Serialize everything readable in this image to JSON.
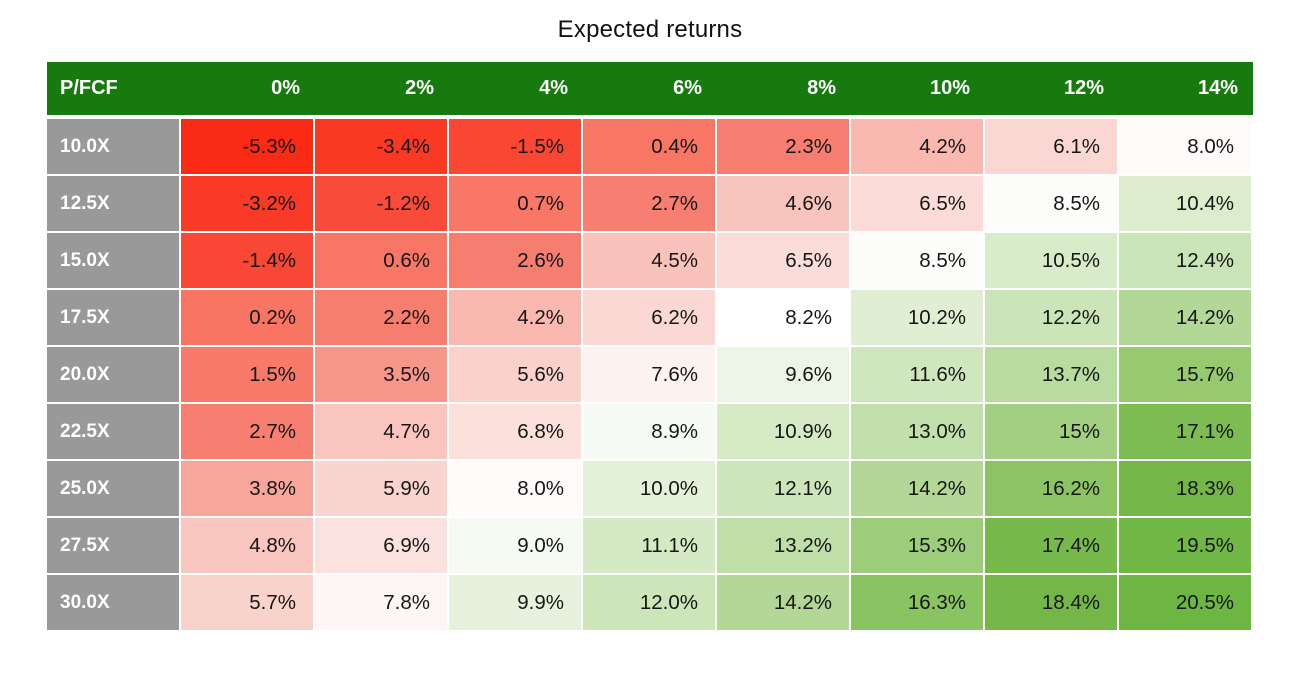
{
  "title": "Expected returns",
  "chart_data": {
    "type": "heatmap",
    "title": "Expected returns",
    "row_header_label": "P/FCF",
    "columns": [
      "0%",
      "2%",
      "4%",
      "6%",
      "8%",
      "10%",
      "12%",
      "14%"
    ],
    "rows": [
      "10.0X",
      "12.5X",
      "15.0X",
      "17.5X",
      "20.0X",
      "22.5X",
      "25.0X",
      "27.5X",
      "30.0X"
    ],
    "values": [
      [
        -5.3,
        -3.4,
        -1.5,
        0.4,
        2.3,
        4.2,
        6.1,
        8.0
      ],
      [
        -3.2,
        -1.2,
        0.7,
        2.7,
        4.6,
        6.5,
        8.5,
        10.4
      ],
      [
        -1.4,
        0.6,
        2.6,
        4.5,
        6.5,
        8.5,
        10.5,
        12.4
      ],
      [
        0.2,
        2.2,
        4.2,
        6.2,
        8.2,
        10.2,
        12.2,
        14.2
      ],
      [
        1.5,
        3.5,
        5.6,
        7.6,
        9.6,
        11.6,
        13.7,
        15.7
      ],
      [
        2.7,
        4.7,
        6.8,
        8.9,
        10.9,
        13.0,
        15.0,
        17.1
      ],
      [
        3.8,
        5.9,
        8.0,
        10.0,
        12.1,
        14.2,
        16.2,
        18.3
      ],
      [
        4.8,
        6.9,
        9.0,
        11.1,
        13.2,
        15.3,
        17.4,
        19.5
      ],
      [
        5.7,
        7.8,
        9.9,
        12.0,
        14.2,
        16.3,
        18.4,
        20.5
      ]
    ],
    "cell_labels": [
      [
        "-5.3%",
        "-3.4%",
        "-1.5%",
        "0.4%",
        "2.3%",
        "4.2%",
        "6.1%",
        "8.0%"
      ],
      [
        "-3.2%",
        "-1.2%",
        "0.7%",
        "2.7%",
        "4.6%",
        "6.5%",
        "8.5%",
        "10.4%"
      ],
      [
        "-1.4%",
        "0.6%",
        "2.6%",
        "4.5%",
        "6.5%",
        "8.5%",
        "10.5%",
        "12.4%"
      ],
      [
        "0.2%",
        "2.2%",
        "4.2%",
        "6.2%",
        "8.2%",
        "10.2%",
        "12.2%",
        "14.2%"
      ],
      [
        "1.5%",
        "3.5%",
        "5.6%",
        "7.6%",
        "9.6%",
        "11.6%",
        "13.7%",
        "15.7%"
      ],
      [
        "2.7%",
        "4.7%",
        "6.8%",
        "8.9%",
        "10.9%",
        "13.0%",
        "15%",
        "17.1%"
      ],
      [
        "3.8%",
        "5.9%",
        "8.0%",
        "10.0%",
        "12.1%",
        "14.2%",
        "16.2%",
        "18.3%"
      ],
      [
        "4.8%",
        "6.9%",
        "9.0%",
        "11.1%",
        "13.2%",
        "15.3%",
        "17.4%",
        "19.5%"
      ],
      [
        "5.7%",
        "7.8%",
        "9.9%",
        "12.0%",
        "14.2%",
        "16.3%",
        "18.4%",
        "20.5%"
      ]
    ],
    "colors": {
      "header_bg": "#167a0f",
      "header_text": "#ffffff",
      "row_header_bg": "#999999",
      "row_header_text": "#ffffff",
      "cell_text": "#161616",
      "grid": "#ffffff",
      "negative_extreme": "#fa2b15",
      "midpoint": "#ffffff",
      "positive_extreme": "#6eb642",
      "scale_anchors": [
        [
          -5.3,
          "#fa2b15"
        ],
        [
          -1.3,
          "#f94836"
        ],
        [
          0.0,
          "#f87462"
        ],
        [
          3.0,
          "#f68073"
        ],
        [
          4.4,
          "#f9c1ba"
        ],
        [
          6.8,
          "#fbe0dc"
        ],
        [
          8.2,
          "#ffffff"
        ],
        [
          9.3,
          "#f3f8ef"
        ],
        [
          10.5,
          "#d9ecca"
        ],
        [
          12.4,
          "#c9e4b6"
        ],
        [
          14.2,
          "#b2d796"
        ],
        [
          16.2,
          "#8cc463"
        ],
        [
          17.5,
          "#76b84a"
        ],
        [
          20.5,
          "#6eb642"
        ]
      ],
      "axis_ranges": {
        "value_min": -5.3,
        "value_max": 20.5
      }
    }
  }
}
